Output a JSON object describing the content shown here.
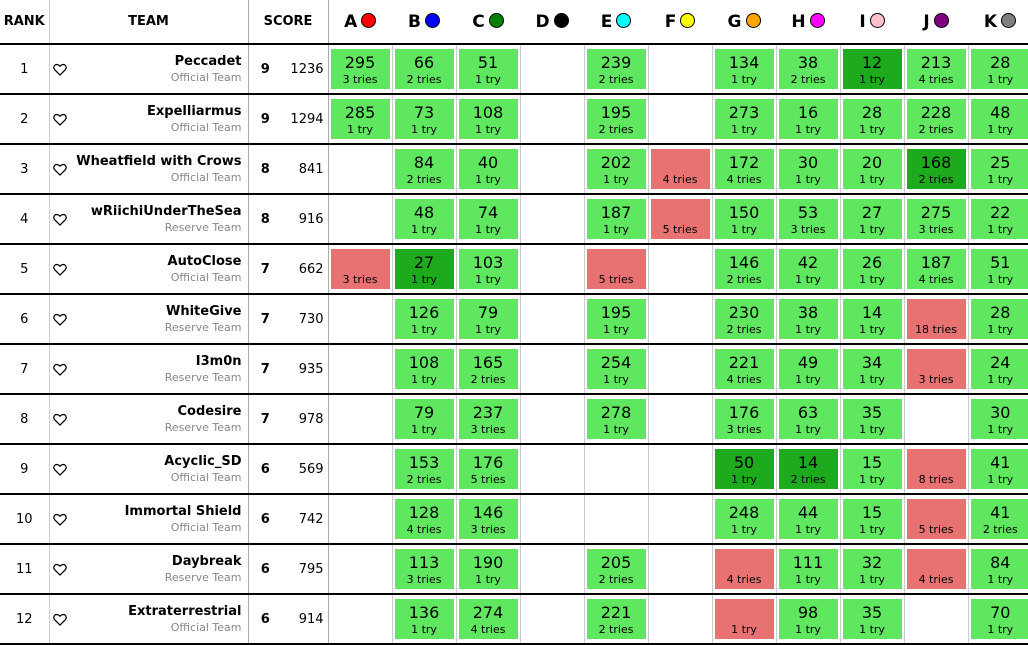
{
  "headers": {
    "rank": "RANK",
    "team": "TEAM",
    "score": "SCORE"
  },
  "problems": [
    {
      "label": "A",
      "color": "#ff0000"
    },
    {
      "label": "B",
      "color": "#0000ff"
    },
    {
      "label": "C",
      "color": "#008000"
    },
    {
      "label": "D",
      "color": "#000000"
    },
    {
      "label": "E",
      "color": "#00ffff"
    },
    {
      "label": "F",
      "color": "#ffff00"
    },
    {
      "label": "G",
      "color": "#ffa500"
    },
    {
      "label": "H",
      "color": "#ff00ff"
    },
    {
      "label": "I",
      "color": "#ffc0cb"
    },
    {
      "label": "J",
      "color": "#800080"
    },
    {
      "label": "K",
      "color": "#808080"
    }
  ],
  "status_colors": {
    "correct": "#60e760",
    "first_to_solve": "#1daa1d",
    "failed": "#e87272"
  },
  "rows": [
    {
      "rank": "1",
      "name": "Peccadet",
      "type": "Official Team",
      "solved": "9",
      "penalty": "1236",
      "cells": [
        {
          "s": "correct",
          "time": "295",
          "tries": "3 tries"
        },
        {
          "s": "correct",
          "time": "66",
          "tries": "2 tries"
        },
        {
          "s": "correct",
          "time": "51",
          "tries": "1 try"
        },
        {
          "s": "none"
        },
        {
          "s": "correct",
          "time": "239",
          "tries": "2 tries"
        },
        {
          "s": "none"
        },
        {
          "s": "correct",
          "time": "134",
          "tries": "1 try"
        },
        {
          "s": "correct",
          "time": "38",
          "tries": "2 tries"
        },
        {
          "s": "first",
          "time": "12",
          "tries": "1 try"
        },
        {
          "s": "correct",
          "time": "213",
          "tries": "4 tries"
        },
        {
          "s": "correct",
          "time": "28",
          "tries": "1 try"
        }
      ]
    },
    {
      "rank": "2",
      "name": "Expelliarmus",
      "type": "Official Team",
      "solved": "9",
      "penalty": "1294",
      "cells": [
        {
          "s": "correct",
          "time": "285",
          "tries": "1 try"
        },
        {
          "s": "correct",
          "time": "73",
          "tries": "1 try"
        },
        {
          "s": "correct",
          "time": "108",
          "tries": "1 try"
        },
        {
          "s": "none"
        },
        {
          "s": "correct",
          "time": "195",
          "tries": "2 tries"
        },
        {
          "s": "none"
        },
        {
          "s": "correct",
          "time": "273",
          "tries": "1 try"
        },
        {
          "s": "correct",
          "time": "16",
          "tries": "1 try"
        },
        {
          "s": "correct",
          "time": "28",
          "tries": "1 try"
        },
        {
          "s": "correct",
          "time": "228",
          "tries": "2 tries"
        },
        {
          "s": "correct",
          "time": "48",
          "tries": "1 try"
        }
      ]
    },
    {
      "rank": "3",
      "name": "Wheatfield with Crows",
      "type": "Official Team",
      "solved": "8",
      "penalty": "841",
      "cells": [
        {
          "s": "none"
        },
        {
          "s": "correct",
          "time": "84",
          "tries": "2 tries"
        },
        {
          "s": "correct",
          "time": "40",
          "tries": "1 try"
        },
        {
          "s": "none"
        },
        {
          "s": "correct",
          "time": "202",
          "tries": "1 try"
        },
        {
          "s": "failed",
          "time": "",
          "tries": "4 tries"
        },
        {
          "s": "correct",
          "time": "172",
          "tries": "4 tries"
        },
        {
          "s": "correct",
          "time": "30",
          "tries": "1 try"
        },
        {
          "s": "correct",
          "time": "20",
          "tries": "1 try"
        },
        {
          "s": "first",
          "time": "168",
          "tries": "2 tries"
        },
        {
          "s": "correct",
          "time": "25",
          "tries": "1 try"
        }
      ]
    },
    {
      "rank": "4",
      "name": "wRiichiUnderTheSea",
      "type": "Reserve Team",
      "solved": "8",
      "penalty": "916",
      "cells": [
        {
          "s": "none"
        },
        {
          "s": "correct",
          "time": "48",
          "tries": "1 try"
        },
        {
          "s": "correct",
          "time": "74",
          "tries": "1 try"
        },
        {
          "s": "none"
        },
        {
          "s": "correct",
          "time": "187",
          "tries": "1 try"
        },
        {
          "s": "failed",
          "time": "",
          "tries": "5 tries"
        },
        {
          "s": "correct",
          "time": "150",
          "tries": "1 try"
        },
        {
          "s": "correct",
          "time": "53",
          "tries": "3 tries"
        },
        {
          "s": "correct",
          "time": "27",
          "tries": "1 try"
        },
        {
          "s": "correct",
          "time": "275",
          "tries": "3 tries"
        },
        {
          "s": "correct",
          "time": "22",
          "tries": "1 try"
        }
      ]
    },
    {
      "rank": "5",
      "name": "AutoClose",
      "type": "Official Team",
      "solved": "7",
      "penalty": "662",
      "cells": [
        {
          "s": "failed",
          "time": "",
          "tries": "3 tries"
        },
        {
          "s": "first",
          "time": "27",
          "tries": "1 try"
        },
        {
          "s": "correct",
          "time": "103",
          "tries": "1 try"
        },
        {
          "s": "none"
        },
        {
          "s": "failed",
          "time": "",
          "tries": "5 tries"
        },
        {
          "s": "none"
        },
        {
          "s": "correct",
          "time": "146",
          "tries": "2 tries"
        },
        {
          "s": "correct",
          "time": "42",
          "tries": "1 try"
        },
        {
          "s": "correct",
          "time": "26",
          "tries": "1 try"
        },
        {
          "s": "correct",
          "time": "187",
          "tries": "4 tries"
        },
        {
          "s": "correct",
          "time": "51",
          "tries": "1 try"
        }
      ]
    },
    {
      "rank": "6",
      "name": "WhiteGive",
      "type": "Reserve Team",
      "solved": "7",
      "penalty": "730",
      "cells": [
        {
          "s": "none"
        },
        {
          "s": "correct",
          "time": "126",
          "tries": "1 try"
        },
        {
          "s": "correct",
          "time": "79",
          "tries": "1 try"
        },
        {
          "s": "none"
        },
        {
          "s": "correct",
          "time": "195",
          "tries": "1 try"
        },
        {
          "s": "none"
        },
        {
          "s": "correct",
          "time": "230",
          "tries": "2 tries"
        },
        {
          "s": "correct",
          "time": "38",
          "tries": "1 try"
        },
        {
          "s": "correct",
          "time": "14",
          "tries": "1 try"
        },
        {
          "s": "failed",
          "time": "",
          "tries": "18 tries"
        },
        {
          "s": "correct",
          "time": "28",
          "tries": "1 try"
        }
      ]
    },
    {
      "rank": "7",
      "name": "I3m0n",
      "type": "Reserve Team",
      "solved": "7",
      "penalty": "935",
      "cells": [
        {
          "s": "none"
        },
        {
          "s": "correct",
          "time": "108",
          "tries": "1 try"
        },
        {
          "s": "correct",
          "time": "165",
          "tries": "2 tries"
        },
        {
          "s": "none"
        },
        {
          "s": "correct",
          "time": "254",
          "tries": "1 try"
        },
        {
          "s": "none"
        },
        {
          "s": "correct",
          "time": "221",
          "tries": "4 tries"
        },
        {
          "s": "correct",
          "time": "49",
          "tries": "1 try"
        },
        {
          "s": "correct",
          "time": "34",
          "tries": "1 try"
        },
        {
          "s": "failed",
          "time": "",
          "tries": "3 tries"
        },
        {
          "s": "correct",
          "time": "24",
          "tries": "1 try"
        }
      ]
    },
    {
      "rank": "8",
      "name": "Codesire",
      "type": "Reserve Team",
      "solved": "7",
      "penalty": "978",
      "cells": [
        {
          "s": "none"
        },
        {
          "s": "correct",
          "time": "79",
          "tries": "1 try"
        },
        {
          "s": "correct",
          "time": "237",
          "tries": "3 tries"
        },
        {
          "s": "none"
        },
        {
          "s": "correct",
          "time": "278",
          "tries": "1 try"
        },
        {
          "s": "none"
        },
        {
          "s": "correct",
          "time": "176",
          "tries": "3 tries"
        },
        {
          "s": "correct",
          "time": "63",
          "tries": "1 try"
        },
        {
          "s": "correct",
          "time": "35",
          "tries": "1 try"
        },
        {
          "s": "none"
        },
        {
          "s": "correct",
          "time": "30",
          "tries": "1 try"
        }
      ]
    },
    {
      "rank": "9",
      "name": "Acyclic_SD",
      "type": "Official Team",
      "solved": "6",
      "penalty": "569",
      "cells": [
        {
          "s": "none"
        },
        {
          "s": "correct",
          "time": "153",
          "tries": "2 tries"
        },
        {
          "s": "correct",
          "time": "176",
          "tries": "5 tries"
        },
        {
          "s": "none"
        },
        {
          "s": "none"
        },
        {
          "s": "none"
        },
        {
          "s": "first",
          "time": "50",
          "tries": "1 try"
        },
        {
          "s": "first",
          "time": "14",
          "tries": "2 tries"
        },
        {
          "s": "correct",
          "time": "15",
          "tries": "1 try"
        },
        {
          "s": "failed",
          "time": "",
          "tries": "8 tries"
        },
        {
          "s": "correct",
          "time": "41",
          "tries": "1 try"
        }
      ]
    },
    {
      "rank": "10",
      "name": "Immortal Shield",
      "type": "Official Team",
      "solved": "6",
      "penalty": "742",
      "cells": [
        {
          "s": "none"
        },
        {
          "s": "correct",
          "time": "128",
          "tries": "4 tries"
        },
        {
          "s": "correct",
          "time": "146",
          "tries": "3 tries"
        },
        {
          "s": "none"
        },
        {
          "s": "none"
        },
        {
          "s": "none"
        },
        {
          "s": "correct",
          "time": "248",
          "tries": "1 try"
        },
        {
          "s": "correct",
          "time": "44",
          "tries": "1 try"
        },
        {
          "s": "correct",
          "time": "15",
          "tries": "1 try"
        },
        {
          "s": "failed",
          "time": "",
          "tries": "5 tries"
        },
        {
          "s": "correct",
          "time": "41",
          "tries": "2 tries"
        }
      ]
    },
    {
      "rank": "11",
      "name": "Daybreak",
      "type": "Reserve Team",
      "solved": "6",
      "penalty": "795",
      "cells": [
        {
          "s": "none"
        },
        {
          "s": "correct",
          "time": "113",
          "tries": "3 tries"
        },
        {
          "s": "correct",
          "time": "190",
          "tries": "1 try"
        },
        {
          "s": "none"
        },
        {
          "s": "correct",
          "time": "205",
          "tries": "2 tries"
        },
        {
          "s": "none"
        },
        {
          "s": "failed",
          "time": "",
          "tries": "4 tries"
        },
        {
          "s": "correct",
          "time": "111",
          "tries": "1 try"
        },
        {
          "s": "correct",
          "time": "32",
          "tries": "1 try"
        },
        {
          "s": "failed",
          "time": "",
          "tries": "4 tries"
        },
        {
          "s": "correct",
          "time": "84",
          "tries": "1 try"
        }
      ]
    },
    {
      "rank": "12",
      "name": "Extraterrestrial",
      "type": "Official Team",
      "solved": "6",
      "penalty": "914",
      "cells": [
        {
          "s": "none"
        },
        {
          "s": "correct",
          "time": "136",
          "tries": "1 try"
        },
        {
          "s": "correct",
          "time": "274",
          "tries": "4 tries"
        },
        {
          "s": "none"
        },
        {
          "s": "correct",
          "time": "221",
          "tries": "2 tries"
        },
        {
          "s": "none"
        },
        {
          "s": "failed",
          "time": "",
          "tries": "1 try"
        },
        {
          "s": "correct",
          "time": "98",
          "tries": "1 try"
        },
        {
          "s": "correct",
          "time": "35",
          "tries": "1 try"
        },
        {
          "s": "none"
        },
        {
          "s": "correct",
          "time": "70",
          "tries": "1 try"
        }
      ]
    }
  ]
}
